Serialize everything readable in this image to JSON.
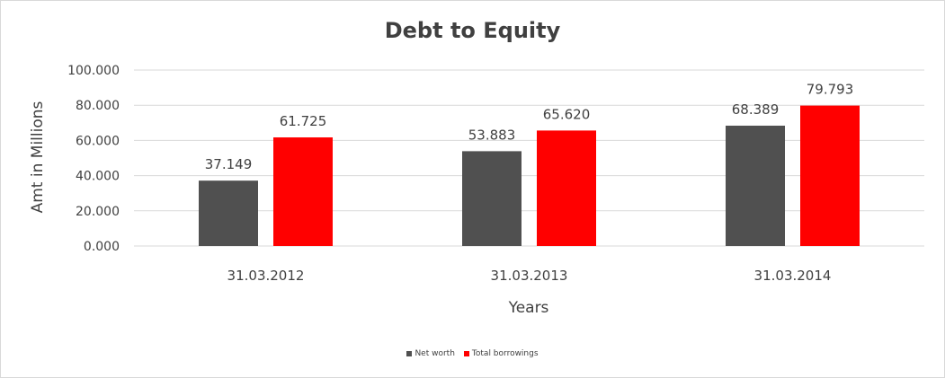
{
  "chart_data": {
    "type": "bar",
    "title": "Debt to Equity",
    "xlabel": "Years",
    "ylabel": "Amt in Millions",
    "categories": [
      "31.03.2012",
      "31.03.2013",
      "31.03.2014"
    ],
    "series": [
      {
        "name": "Net worth",
        "color": "#505050",
        "values": [
          37.149,
          53.883,
          68.389
        ],
        "labels": [
          "37.149",
          "53.883",
          "68.389"
        ]
      },
      {
        "name": "Total borrowings",
        "color": "#ff0000",
        "values": [
          61.725,
          65.62,
          79.793
        ],
        "labels": [
          "61.725",
          "65.620",
          "79.793"
        ]
      }
    ],
    "ylim": [
      0,
      100
    ],
    "yticks": [
      "0.000",
      "20.000",
      "40.000",
      "60.000",
      "80.000",
      "100.000"
    ],
    "grid": true,
    "legend": "bottom"
  }
}
